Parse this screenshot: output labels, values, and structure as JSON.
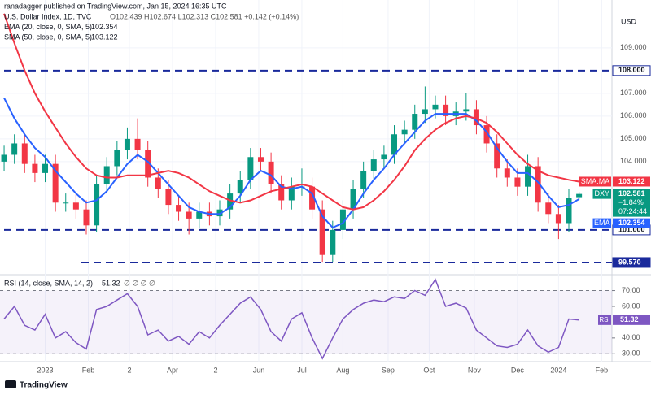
{
  "published": "ranadagger published on TradingView.com, Jan 15, 2024 16:35 UTC",
  "footer": "TradingView",
  "chart_data": {
    "type": "candlestick",
    "title": "U.S. Dollar Index, 1D, TVC",
    "ohlc_text": "O102.439 H102.674 L102.313 C102.581 +0.142 (+0.14%)",
    "currency": "USD",
    "x": [
      -20,
      -15,
      -10,
      -5,
      0,
      5,
      10,
      15,
      20,
      25,
      30,
      35,
      40,
      45,
      50,
      55,
      60,
      65,
      70,
      75,
      80,
      85,
      90,
      95,
      100,
      105,
      110,
      115,
      120,
      125,
      130,
      135,
      140,
      145,
      150,
      155,
      160,
      165,
      170,
      175,
      180,
      185,
      190,
      195,
      200,
      205,
      210,
      215,
      220,
      225,
      230,
      235,
      240,
      245,
      250,
      255,
      260
    ],
    "xlim": [
      -22,
      276
    ],
    "xticks": [
      {
        "value": 0,
        "label": "2023"
      },
      {
        "value": 21,
        "label": "Feb"
      },
      {
        "value": 41,
        "label": "2"
      },
      {
        "value": 62,
        "label": "Apr"
      },
      {
        "value": 83,
        "label": "2"
      },
      {
        "value": 104,
        "label": "Jun"
      },
      {
        "value": 125,
        "label": "Jul"
      },
      {
        "value": 145,
        "label": "Aug"
      },
      {
        "value": 167,
        "label": "Sep"
      },
      {
        "value": 187,
        "label": "Oct"
      },
      {
        "value": 209,
        "label": "Nov"
      },
      {
        "value": 230,
        "label": "Dec"
      },
      {
        "value": 250,
        "label": "2024"
      },
      {
        "value": 271,
        "label": "Feb"
      }
    ],
    "ylim": [
      99.14,
      111.1
    ],
    "yticks": [
      {
        "value": 109,
        "label": "109.000"
      },
      {
        "value": 107,
        "label": "107.000"
      },
      {
        "value": 106,
        "label": "106.000"
      },
      {
        "value": 105,
        "label": "105.000"
      },
      {
        "value": 104,
        "label": "104.000"
      }
    ],
    "series": [
      {
        "name": "DXY",
        "up_color": "#089981",
        "down_color": "#f23645",
        "open": [
          104.0,
          104.3,
          104.8,
          103.9,
          103.5,
          103.9,
          102.2,
          102.2,
          101.9,
          101.2,
          103.0,
          103.8,
          104.5,
          105.0,
          104.5,
          103.3,
          102.8,
          102.1,
          101.8,
          101.5,
          101.8,
          101.6,
          101.9,
          102.6,
          103.2,
          104.2,
          104.0,
          103.0,
          102.3,
          102.9,
          102.9,
          101.9,
          99.9,
          101.0,
          101.9,
          102.8,
          103.6,
          104.1,
          104.3,
          105.2,
          105.4,
          106.1,
          106.3,
          106.5,
          106.0,
          106.2,
          106.3,
          105.6,
          104.8,
          103.7,
          103.3,
          102.9,
          103.8,
          102.2,
          101.7,
          101.3,
          102.439
        ],
        "high": [
          104.7,
          105.2,
          105.2,
          104.3,
          104.3,
          104.3,
          102.6,
          102.6,
          102.3,
          103.4,
          104.2,
          104.9,
          105.5,
          105.9,
          104.9,
          103.7,
          103.2,
          102.5,
          102.2,
          102.2,
          102.2,
          102.3,
          103.0,
          103.6,
          104.6,
          104.6,
          104.4,
          103.4,
          103.3,
          103.7,
          103.3,
          102.3,
          101.4,
          102.3,
          103.2,
          104.0,
          104.5,
          104.7,
          105.6,
          105.8,
          106.5,
          107.3,
          106.9,
          106.9,
          106.6,
          107.0,
          106.7,
          106.0,
          105.2,
          104.1,
          103.7,
          104.3,
          104.2,
          102.6,
          102.1,
          102.8,
          102.674
        ],
        "low": [
          103.6,
          103.9,
          103.5,
          103.1,
          103.1,
          101.8,
          101.8,
          101.5,
          100.8,
          100.9,
          102.6,
          103.4,
          104.1,
          104.1,
          102.9,
          102.4,
          101.7,
          101.4,
          100.8,
          101.1,
          101.2,
          101.2,
          101.5,
          102.2,
          102.8,
          103.6,
          102.6,
          101.9,
          101.9,
          102.5,
          101.5,
          99.6,
          99.6,
          100.6,
          101.5,
          102.4,
          103.2,
          103.7,
          103.9,
          104.8,
          105.0,
          105.7,
          105.9,
          105.6,
          105.6,
          105.8,
          105.2,
          104.4,
          103.3,
          102.9,
          102.5,
          102.5,
          101.8,
          101.3,
          100.6,
          100.9,
          102.313
        ],
        "close": [
          104.3,
          104.8,
          103.9,
          103.5,
          103.9,
          102.2,
          102.2,
          101.9,
          101.2,
          103.0,
          103.8,
          104.5,
          105.0,
          104.5,
          103.3,
          102.8,
          102.1,
          101.8,
          101.5,
          101.8,
          101.6,
          101.9,
          102.6,
          103.2,
          104.2,
          104.0,
          103.0,
          102.3,
          102.9,
          102.9,
          101.9,
          99.9,
          101.0,
          101.9,
          102.8,
          103.6,
          104.1,
          104.3,
          105.2,
          105.4,
          106.1,
          106.3,
          106.5,
          106.0,
          106.2,
          106.3,
          105.6,
          104.8,
          103.7,
          103.3,
          102.9,
          103.8,
          102.2,
          101.7,
          101.3,
          102.4,
          102.581
        ]
      },
      {
        "name": "EMA (20, close, 0, SMA, 5)",
        "color": "#2962ff",
        "last_label": "102.354",
        "values": [
          106.8,
          105.9,
          105.2,
          104.6,
          104.2,
          103.6,
          103.1,
          102.6,
          102.2,
          102.3,
          102.7,
          103.3,
          103.9,
          104.3,
          104.0,
          103.5,
          103.0,
          102.5,
          102.0,
          101.8,
          101.7,
          101.7,
          102.0,
          102.5,
          103.2,
          103.6,
          103.4,
          102.9,
          102.8,
          102.9,
          102.6,
          101.6,
          101.1,
          101.3,
          101.9,
          102.6,
          103.2,
          103.7,
          104.3,
          104.8,
          105.3,
          105.8,
          106.1,
          106.1,
          106.1,
          106.1,
          105.8,
          105.3,
          104.6,
          104.0,
          103.5,
          103.5,
          103.1,
          102.5,
          102.0,
          102.1,
          102.354
        ]
      },
      {
        "name": "SMA (50, close, 0, SMA, 5)",
        "color": "#f23645",
        "last_label": "103.122",
        "values": [
          110.5,
          109.2,
          108.0,
          107.0,
          106.2,
          105.5,
          104.8,
          104.2,
          103.7,
          103.4,
          103.3,
          103.3,
          103.4,
          103.4,
          103.4,
          103.5,
          103.6,
          103.5,
          103.3,
          103.0,
          102.7,
          102.5,
          102.3,
          102.2,
          102.3,
          102.5,
          102.7,
          102.8,
          102.9,
          103.0,
          102.9,
          102.6,
          102.3,
          102.0,
          101.9,
          102.0,
          102.3,
          102.7,
          103.2,
          103.8,
          104.5,
          105.0,
          105.4,
          105.7,
          105.9,
          106.0,
          105.9,
          105.7,
          105.3,
          104.8,
          104.3,
          103.9,
          103.6,
          103.4,
          103.3,
          103.2,
          103.122
        ]
      }
    ],
    "levels": [
      {
        "value": 108,
        "label": "108.000"
      },
      {
        "value": 101,
        "label": "101.000"
      },
      {
        "value": 99.57,
        "label": "99.570"
      }
    ],
    "level_color": "#1a2a9c",
    "price_tags": [
      {
        "tag": "SMA:MA",
        "value": 103.122,
        "label": "103.122",
        "color": "#f23645"
      },
      {
        "tag": "DXY",
        "value": 102.581,
        "label": "102.581",
        "lines": [
          "−1.84%",
          "07:24:44"
        ],
        "color": "#089981"
      },
      {
        "tag": "EMA",
        "value": 102.354,
        "label": "102.354",
        "color": "#2962ff"
      }
    ],
    "rsi": {
      "name": "RSI (14, close, SMA, 14, 2)",
      "value_label": "51.32",
      "extra": "∅ ∅ ∅ ∅",
      "tag": "RSI",
      "value": 51.32,
      "color": "#7e57c2",
      "values": [
        52,
        60,
        48,
        45,
        55,
        40,
        44,
        37,
        33,
        58,
        60,
        64,
        68,
        60,
        42,
        45,
        38,
        41,
        36,
        44,
        40,
        48,
        55,
        62,
        66,
        58,
        44,
        38,
        52,
        56,
        40,
        27,
        40,
        52,
        58,
        62,
        64,
        63,
        66,
        65,
        70,
        67,
        77,
        60,
        62,
        59,
        45,
        40,
        35,
        34,
        36,
        45,
        35,
        31,
        34,
        52,
        51.32
      ],
      "ylim": [
        25,
        78
      ],
      "yticks": [
        {
          "value": 70,
          "label": "70.00"
        },
        {
          "value": 60,
          "label": "60.00"
        },
        {
          "value": 40,
          "label": "40.00"
        },
        {
          "value": 30,
          "label": "30.00"
        }
      ],
      "band": [
        30,
        70
      ]
    }
  }
}
